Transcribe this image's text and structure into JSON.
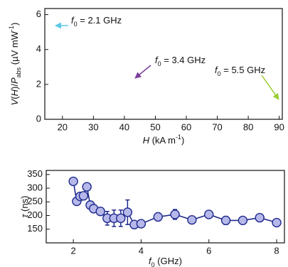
{
  "chart_data": [
    {
      "type": "peaks",
      "xlabel": [
        {
          "text": "H",
          "style": "i"
        },
        {
          "text": " (kA m",
          "style": "n"
        },
        {
          "text": "-1",
          "style": "sup"
        },
        {
          "text": ")",
          "style": "n"
        }
      ],
      "ylabel": [
        {
          "text": "V",
          "style": "i"
        },
        {
          "text": "(",
          "style": "n"
        },
        {
          "text": "H",
          "style": "i"
        },
        {
          "text": ")/",
          "style": "n"
        },
        {
          "text": "P",
          "style": "i"
        },
        {
          "text": "abs",
          "style": "sub"
        },
        {
          "text": "  (µV mW",
          "style": "n"
        },
        {
          "text": "-1",
          "style": "sup"
        },
        {
          "text": ")",
          "style": "n"
        }
      ],
      "xlim": [
        14.3,
        91
      ],
      "ylim": [
        0,
        6.35
      ],
      "xticks": [
        20,
        30,
        40,
        50,
        60,
        70,
        80,
        90
      ],
      "yticks": [
        0,
        2,
        4,
        6
      ],
      "annotations": [
        {
          "parts": [
            {
              "text": "f",
              "style": "i"
            },
            {
              "text": "0",
              "style": "sub"
            },
            {
              "text": " = 2.1 GHz",
              "style": "n"
            }
          ],
          "color": "#5ec7e6"
        },
        {
          "parts": [
            {
              "text": "f",
              "style": "i"
            },
            {
              "text": "0",
              "style": "sub"
            },
            {
              "text": " = 3.4 GHz",
              "style": "n"
            }
          ],
          "color": "#7a3f9d"
        },
        {
          "parts": [
            {
              "text": "f",
              "style": "i"
            },
            {
              "text": "0",
              "style": "sub"
            },
            {
              "text": " = 5.5 GHz",
              "style": "n"
            }
          ],
          "color": "#9acd32"
        }
      ],
      "peaks": [
        {
          "x": 16.5,
          "y": 4.9,
          "color": "#7fd3ea"
        },
        {
          "x": 17.8,
          "y": 6.0,
          "color": "#5ec7e6"
        },
        {
          "x": 19.3,
          "y": 5.1,
          "color": "#3fa9db"
        },
        {
          "x": 20.8,
          "y": 5.4,
          "color": "#3a8fd0"
        },
        {
          "x": 22.2,
          "y": 5.0,
          "color": "#2f7fc4"
        },
        {
          "x": 23.6,
          "y": 5.1,
          "color": "#2a6db8"
        },
        {
          "x": 25.0,
          "y": 4.5,
          "color": "#2e60ad"
        },
        {
          "x": 26.4,
          "y": 4.6,
          "color": "#2b55a5"
        },
        {
          "x": 27.8,
          "y": 4.1,
          "color": "#2f4c9e"
        },
        {
          "x": 29.2,
          "y": 3.9,
          "color": "#324699"
        },
        {
          "x": 30.6,
          "y": 3.8,
          "color": "#3a4396"
        },
        {
          "x": 32.0,
          "y": 3.4,
          "color": "#3b3f93"
        },
        {
          "x": 33.4,
          "y": 3.4,
          "color": "#403c92"
        },
        {
          "x": 34.8,
          "y": 3.0,
          "color": "#473a93"
        },
        {
          "x": 36.2,
          "y": 3.0,
          "color": "#503a96"
        },
        {
          "x": 37.6,
          "y": 2.7,
          "color": "#5b3b9a"
        },
        {
          "x": 39.0,
          "y": 2.6,
          "color": "#653c9d"
        },
        {
          "x": 40.4,
          "y": 2.5,
          "color": "#7040a0"
        },
        {
          "x": 41.8,
          "y": 2.0,
          "color": "#8040a0"
        },
        {
          "x": 43.3,
          "y": 1.6,
          "color": "#9a3f9d"
        },
        {
          "x": 44.8,
          "y": 1.5,
          "color": "#b03c97"
        },
        {
          "x": 46.3,
          "y": 1.4,
          "color": "#c2388e"
        },
        {
          "x": 47.8,
          "y": 1.3,
          "color": "#d03585"
        },
        {
          "x": 49.3,
          "y": 1.3,
          "color": "#db327b"
        },
        {
          "x": 50.8,
          "y": 1.2,
          "color": "#e33070"
        },
        {
          "x": 52.3,
          "y": 1.3,
          "color": "#e72f63"
        },
        {
          "x": 53.8,
          "y": 1.3,
          "color": "#eb2f56"
        },
        {
          "x": 55.3,
          "y": 1.2,
          "color": "#ee3049"
        },
        {
          "x": 56.8,
          "y": 1.4,
          "color": "#f0333d"
        },
        {
          "x": 58.3,
          "y": 1.4,
          "color": "#f13833"
        },
        {
          "x": 59.8,
          "y": 1.5,
          "color": "#f2402b"
        },
        {
          "x": 61.3,
          "y": 1.5,
          "color": "#f34a26"
        },
        {
          "x": 62.8,
          "y": 1.6,
          "color": "#f45422"
        },
        {
          "x": 64.3,
          "y": 1.7,
          "color": "#f55f20"
        },
        {
          "x": 65.8,
          "y": 1.7,
          "color": "#f56a1f"
        },
        {
          "x": 67.3,
          "y": 1.8,
          "color": "#f5761f"
        },
        {
          "x": 68.8,
          "y": 1.8,
          "color": "#f58220"
        },
        {
          "x": 70.3,
          "y": 1.7,
          "color": "#f58e22"
        },
        {
          "x": 71.8,
          "y": 1.7,
          "color": "#f49a25"
        },
        {
          "x": 73.3,
          "y": 1.7,
          "color": "#f2a628"
        },
        {
          "x": 74.8,
          "y": 1.6,
          "color": "#efb22b"
        },
        {
          "x": 76.3,
          "y": 1.6,
          "color": "#ebbc2d"
        },
        {
          "x": 77.8,
          "y": 1.5,
          "color": "#e6c62f"
        },
        {
          "x": 79.3,
          "y": 1.5,
          "color": "#dfcd31"
        },
        {
          "x": 80.8,
          "y": 1.5,
          "color": "#d6d133"
        },
        {
          "x": 82.3,
          "y": 1.4,
          "color": "#ccd435"
        },
        {
          "x": 83.8,
          "y": 1.3,
          "color": "#c0d437"
        },
        {
          "x": 85.3,
          "y": 1.3,
          "color": "#b4d23a"
        },
        {
          "x": 86.8,
          "y": 1.2,
          "color": "#a8cf3c"
        },
        {
          "x": 88.3,
          "y": 1.1,
          "color": "#9ccc3e"
        },
        {
          "x": 89.8,
          "y": 0.8,
          "color": "#90c840"
        }
      ]
    },
    {
      "type": "scatter",
      "xlabel": [
        {
          "text": "f",
          "style": "i"
        },
        {
          "text": "0",
          "style": "sub"
        },
        {
          "text": " (GHz)",
          "style": "n"
        }
      ],
      "ylabel": [
        {
          "text": "τ",
          "style": "i"
        },
        {
          "text": " (ns)",
          "style": "n"
        }
      ],
      "xlim": [
        1.2,
        8.23
      ],
      "ylim": [
        100,
        365
      ],
      "xticks": [
        2,
        4,
        6,
        8
      ],
      "yticks": [
        150,
        200,
        250,
        300,
        350
      ],
      "color": "#b6b8ea",
      "edge": "#1f2a8c",
      "x": [
        2.0,
        2.1,
        2.2,
        2.3,
        2.4,
        2.5,
        2.6,
        2.8,
        3.0,
        3.2,
        3.4,
        3.6,
        3.8,
        4.0,
        4.5,
        5.0,
        5.5,
        6.0,
        6.5,
        7.0,
        7.5,
        8.0
      ],
      "values": [
        325,
        252,
        270,
        272,
        305,
        238,
        225,
        215,
        190,
        190,
        190,
        212,
        167,
        170,
        195,
        204,
        184,
        204,
        182,
        182,
        192,
        174
      ],
      "errors": [
        0,
        0,
        0,
        0,
        0,
        0,
        0,
        0,
        25,
        30,
        30,
        45,
        0,
        0,
        15,
        18,
        0,
        0,
        15,
        0,
        0,
        0
      ]
    }
  ]
}
